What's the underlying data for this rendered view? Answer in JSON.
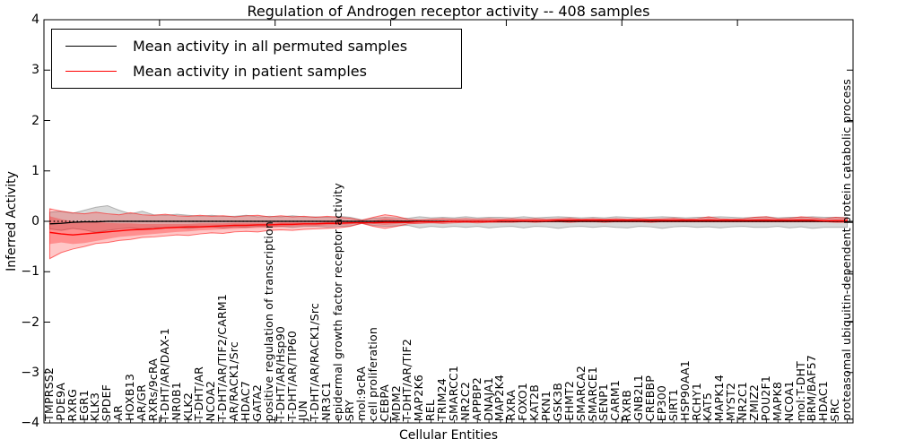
{
  "title": "Regulation of Androgen receptor activity -- 408 samples",
  "legend": {
    "entries": [
      {
        "label": "Mean activity in all permuted samples",
        "color": "#000000"
      },
      {
        "label": "Mean activity in patient samples",
        "color": "#ff0000"
      }
    ]
  },
  "axes": {
    "y_label": "Inferred Activity",
    "x_label": "Cellular Entities",
    "y_tick_labels": [
      "4",
      "3",
      "2",
      "1",
      "0",
      "−1",
      "−2",
      "−3",
      "−4"
    ],
    "y_tick_values": [
      4,
      3,
      2,
      1,
      0,
      -1,
      -2,
      -3,
      -4
    ],
    "x_major_tick_positions": [
      10,
      20,
      30,
      40,
      50,
      60
    ]
  },
  "chart_data": {
    "type": "line",
    "title": "Regulation of Androgen receptor activity -- 408 samples",
    "xlabel": "Cellular Entities",
    "ylabel": "Inferred Activity",
    "ylim": [
      -4,
      4
    ],
    "grid": false,
    "legend_position": "upper left",
    "categories": [
      "TMPRSS2",
      "PDE9A",
      "RXRG",
      "EGR1",
      "KLK3",
      "SPDEF",
      "AR",
      "HOXB13",
      "AR/GR",
      "RXRs/9cRA",
      "T-DHT/AR/DAX-1",
      "NR0B1",
      "KLK2",
      "T-DHT/AR",
      "NCOA2",
      "T-DHT/AR/TIF2/CARM1",
      "AR/RACK1/Src",
      "HDAC7",
      "GATA2",
      "positive regulation of transcription",
      "T-DHT/AR/Hsp90",
      "T-DHT/AR/TIP60",
      "JUN",
      "T-DHT/AR/RACK1/Src",
      "NR3C1",
      "epidermal growth factor receptor activity",
      "SRY",
      "mol:9cRA",
      "cell proliferation",
      "CEBPA",
      "MDM2",
      "T-DHT/AR/TIF2",
      "MAP2K6",
      "REL",
      "TRIM24",
      "SMARCC1",
      "NR2C2",
      "APPBP2",
      "DNAJA1",
      "MAP2K4",
      "RXRA",
      "FOXO1",
      "KAT2B",
      "PKN1",
      "GSK3B",
      "EHMT2",
      "SMARCA2",
      "SMARCE1",
      "SENP1",
      "CARM1",
      "RXRB",
      "GNB2L1",
      "CREBBP",
      "EP300",
      "SIRT1",
      "HSP90AA1",
      "RCHY1",
      "KAT5",
      "MAPK14",
      "MYST2",
      "NR2C1",
      "ZMIZ2",
      "POU2F1",
      "MAPK8",
      "NCOA1",
      "mol:T-DHT",
      "BRM/BAF57",
      "HDAC1",
      "SRC",
      "proteasomal ubiquitin-dependent protein catabolic process"
    ],
    "zero_line": {
      "value": 0,
      "style": "dotted",
      "color": "#000000"
    },
    "series": [
      {
        "name": "Mean activity in all permuted samples",
        "color": "#000000",
        "width": 1.3,
        "values": [
          -0.05,
          -0.04,
          -0.02,
          -0.01,
          -0.01,
          0,
          0,
          0,
          0,
          0,
          0,
          0,
          0,
          0,
          0,
          0,
          0,
          0,
          0,
          0,
          0,
          0,
          0,
          0,
          0,
          0,
          0,
          0,
          0,
          0,
          0,
          0,
          0,
          0,
          0,
          0,
          0,
          0,
          0,
          0,
          0,
          0,
          0,
          0,
          0,
          0,
          0,
          0,
          0,
          0,
          0,
          0,
          0,
          0,
          0,
          0,
          0,
          0,
          0,
          0,
          0,
          0,
          0,
          0,
          0,
          0,
          0,
          0,
          0,
          0
        ]
      },
      {
        "name": "Mean activity in patient samples",
        "color": "#ff0000",
        "width": 1.4,
        "values": [
          -0.22,
          -0.25,
          -0.27,
          -0.25,
          -0.23,
          -0.21,
          -0.19,
          -0.17,
          -0.16,
          -0.15,
          -0.13,
          -0.12,
          -0.11,
          -0.11,
          -0.1,
          -0.09,
          -0.08,
          -0.08,
          -0.07,
          -0.07,
          -0.06,
          -0.06,
          -0.05,
          -0.05,
          -0.04,
          -0.04,
          -0.03,
          -0.03,
          -0.03,
          -0.02,
          -0.02,
          -0.02,
          -0.01,
          -0.01,
          -0.01,
          0,
          0,
          0,
          0,
          0.01,
          0.01,
          0.01,
          0.01,
          0.01,
          0.02,
          0.02,
          0.02,
          0.02,
          0.02,
          0.02,
          0.02,
          0.02,
          0.02,
          0.02,
          0.02,
          0.02,
          0.02,
          0.02,
          0.02,
          0.02,
          0.02,
          0.02,
          0.02,
          0.02,
          0.02,
          0.02,
          0.02,
          0.01,
          0.01,
          0.01
        ]
      }
    ],
    "bands": [
      {
        "name": "permuted-range",
        "color": "#808080",
        "fill_opacity": 0.3,
        "edge": true,
        "upper": [
          0.18,
          0.2,
          0.16,
          0.22,
          0.28,
          0.31,
          0.22,
          0.15,
          0.2,
          0.13,
          0.12,
          0.14,
          0.12,
          0.1,
          0.12,
          0.1,
          0.1,
          0.12,
          0.09,
          0.1,
          0.09,
          0.11,
          0.09,
          0.09,
          0.08,
          0.1,
          0.08,
          0.03,
          0.06,
          0.08,
          0.07,
          0.06,
          0.09,
          0.07,
          0.08,
          0.07,
          0.09,
          0.07,
          0.08,
          0.08,
          0.07,
          0.09,
          0.07,
          0.08,
          0.09,
          0.08,
          0.07,
          0.08,
          0.07,
          0.09,
          0.08,
          0.07,
          0.08,
          0.09,
          0.08,
          0.07,
          0.08,
          0.08,
          0.09,
          0.08,
          0.07,
          0.08,
          0.09,
          0.07,
          0.08,
          0.08,
          0.09,
          0.08,
          0.08,
          0.08
        ],
        "lower": [
          -0.15,
          -0.18,
          -0.14,
          -0.17,
          -0.22,
          -0.18,
          -0.15,
          -0.13,
          -0.15,
          -0.12,
          -0.13,
          -0.12,
          -0.14,
          -0.12,
          -0.11,
          -0.13,
          -0.11,
          -0.12,
          -0.1,
          -0.11,
          -0.1,
          -0.12,
          -0.1,
          -0.1,
          -0.11,
          -0.1,
          -0.09,
          -0.04,
          -0.08,
          -0.1,
          -0.09,
          -0.08,
          -0.13,
          -0.1,
          -0.12,
          -0.1,
          -0.12,
          -0.1,
          -0.13,
          -0.11,
          -0.1,
          -0.13,
          -0.1,
          -0.11,
          -0.14,
          -0.11,
          -0.1,
          -0.12,
          -0.1,
          -0.12,
          -0.13,
          -0.1,
          -0.11,
          -0.14,
          -0.11,
          -0.1,
          -0.12,
          -0.11,
          -0.13,
          -0.11,
          -0.1,
          -0.12,
          -0.12,
          -0.1,
          -0.13,
          -0.11,
          -0.14,
          -0.12,
          -0.12,
          -0.12
        ]
      },
      {
        "name": "patient-range-outer",
        "color": "#ff0000",
        "fill_opacity": 0.22,
        "edge": true,
        "upper": [
          0.25,
          0.2,
          0.17,
          0.15,
          0.18,
          0.15,
          0.13,
          0.17,
          0.13,
          0.12,
          0.14,
          0.11,
          0.1,
          0.12,
          0.1,
          0.11,
          0.09,
          0.11,
          0.12,
          0.09,
          0.11,
          0.09,
          0.1,
          0.08,
          0.1,
          0.08,
          0.06,
          0.02,
          0.08,
          0.13,
          0.1,
          0.04,
          0.03,
          0.04,
          0.05,
          0.04,
          0.05,
          0.04,
          0.05,
          0.04,
          0.05,
          0.04,
          0.05,
          0.04,
          0.05,
          0.06,
          0.04,
          0.05,
          0.04,
          0.05,
          0.04,
          0.05,
          0.04,
          0.05,
          0.06,
          0.04,
          0.05,
          0.09,
          0.05,
          0.04,
          0.05,
          0.08,
          0.09,
          0.05,
          0.06,
          0.09,
          0.07,
          0.05,
          0.08,
          0.06
        ],
        "lower": [
          -0.74,
          -0.62,
          -0.55,
          -0.5,
          -0.44,
          -0.42,
          -0.38,
          -0.36,
          -0.32,
          -0.31,
          -0.29,
          -0.27,
          -0.28,
          -0.25,
          -0.23,
          -0.24,
          -0.21,
          -0.2,
          -0.21,
          -0.18,
          -0.17,
          -0.18,
          -0.16,
          -0.15,
          -0.14,
          -0.13,
          -0.1,
          -0.04,
          -0.1,
          -0.14,
          -0.1,
          -0.05,
          -0.04,
          -0.03,
          -0.04,
          -0.03,
          -0.02,
          -0.03,
          -0.02,
          -0.02,
          -0.02,
          -0.01,
          -0.02,
          -0.01,
          -0.01,
          -0.02,
          -0.01,
          -0.01,
          -0.02,
          -0.01,
          -0.01,
          -0.01,
          -0.02,
          -0.01,
          -0.01,
          -0.01,
          -0.01,
          -0.01,
          -0.01,
          -0.01,
          -0.01,
          -0.01,
          -0.01,
          -0.01,
          -0.01,
          -0.01,
          -0.01,
          -0.01,
          -0.02,
          -0.02
        ]
      },
      {
        "name": "patient-range-inner",
        "color": "#ff0000",
        "fill_opacity": 0.28,
        "edge": false,
        "upper": [
          0.1,
          0.04,
          0.0,
          -0.02,
          -0.01,
          -0.03,
          -0.04,
          -0.04,
          -0.05,
          -0.05,
          -0.05,
          -0.05,
          -0.05,
          -0.04,
          -0.04,
          -0.04,
          -0.03,
          -0.03,
          -0.03,
          -0.03,
          -0.02,
          -0.02,
          -0.02,
          -0.02,
          -0.01,
          -0.01,
          -0.01,
          0.0,
          0.02,
          0.06,
          0.04,
          0.02,
          0.02,
          0.02,
          0.02,
          0.02,
          0.02,
          0.02,
          0.02,
          0.03,
          0.03,
          0.03,
          0.03,
          0.03,
          0.03,
          0.04,
          0.03,
          0.03,
          0.03,
          0.03,
          0.03,
          0.03,
          0.03,
          0.03,
          0.04,
          0.03,
          0.03,
          0.06,
          0.03,
          0.03,
          0.03,
          0.05,
          0.06,
          0.03,
          0.04,
          0.06,
          0.05,
          0.03,
          0.05,
          0.04
        ],
        "lower": [
          -0.45,
          -0.42,
          -0.45,
          -0.43,
          -0.39,
          -0.35,
          -0.31,
          -0.29,
          -0.27,
          -0.25,
          -0.23,
          -0.21,
          -0.2,
          -0.18,
          -0.17,
          -0.16,
          -0.15,
          -0.14,
          -0.13,
          -0.12,
          -0.11,
          -0.1,
          -0.09,
          -0.09,
          -0.08,
          -0.07,
          -0.06,
          -0.02,
          -0.05,
          -0.07,
          -0.05,
          -0.03,
          -0.02,
          -0.02,
          -0.02,
          -0.01,
          -0.01,
          -0.01,
          -0.01,
          0.0,
          0,
          0,
          0,
          0,
          0,
          0,
          0,
          0,
          0,
          0,
          0,
          0,
          0,
          0,
          0,
          0,
          0,
          0,
          0,
          0,
          0,
          0,
          0,
          0,
          0,
          0,
          0,
          0,
          -0.01,
          -0.01
        ]
      }
    ]
  }
}
